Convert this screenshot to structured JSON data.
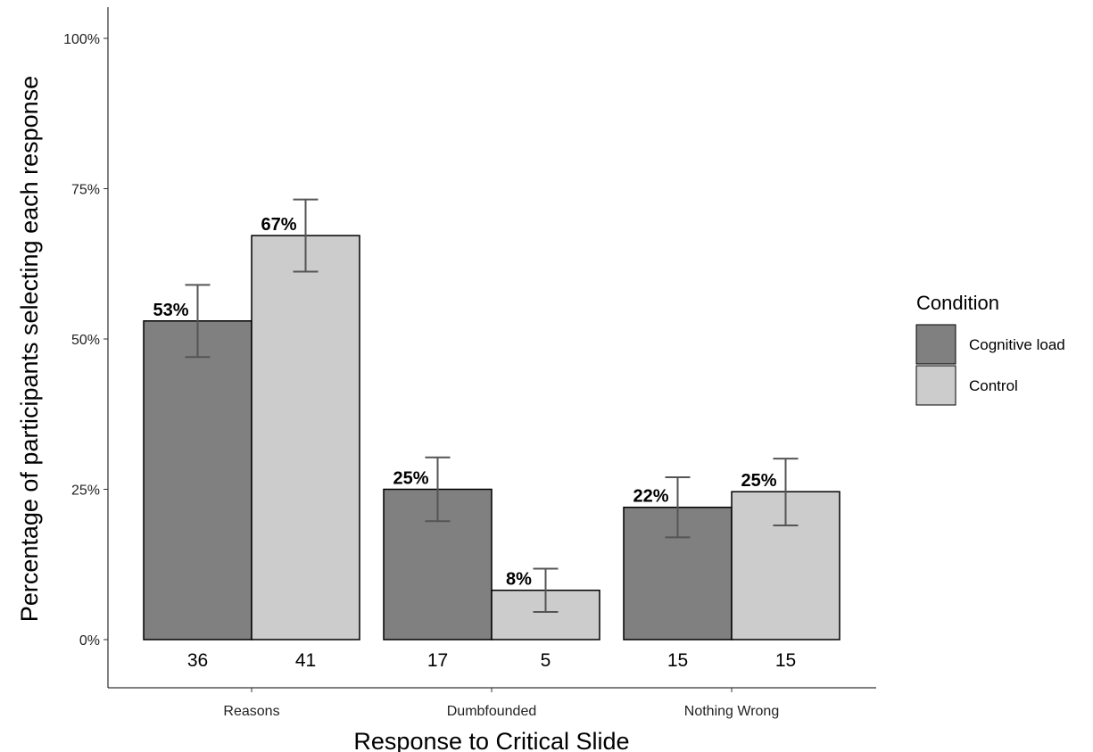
{
  "chart_data": {
    "type": "bar",
    "xlabel": "Response to Critical Slide",
    "ylabel": "Percentage of participants selecting each response",
    "ylim": [
      -0.08,
      1.05
    ],
    "yticks": [
      0,
      0.25,
      0.5,
      0.75,
      1.0
    ],
    "ytick_labels": [
      "0%",
      "25%",
      "50%",
      "75%",
      "100%"
    ],
    "categories": [
      "Reasons",
      "Dumbfounded",
      "Nothing Wrong"
    ],
    "grid": false,
    "legend": {
      "title": "Condition",
      "position": "right"
    },
    "series": [
      {
        "name": "Cognitive load",
        "color": "#808080",
        "values": [
          0.53,
          0.25,
          0.22
        ],
        "labels": [
          "53%",
          "25%",
          "22%"
        ],
        "counts": [
          "36",
          "17",
          "15"
        ],
        "error_low": [
          0.47,
          0.197,
          0.17
        ],
        "error_high": [
          0.59,
          0.303,
          0.27
        ]
      },
      {
        "name": "Control",
        "color": "#cccccc",
        "values": [
          0.672,
          0.082,
          0.246
        ],
        "labels": [
          "67%",
          "8%",
          "25%"
        ],
        "counts": [
          "41",
          "5",
          "15"
        ],
        "error_low": [
          0.612,
          0.046,
          0.19
        ],
        "error_high": [
          0.732,
          0.118,
          0.301
        ]
      }
    ]
  }
}
